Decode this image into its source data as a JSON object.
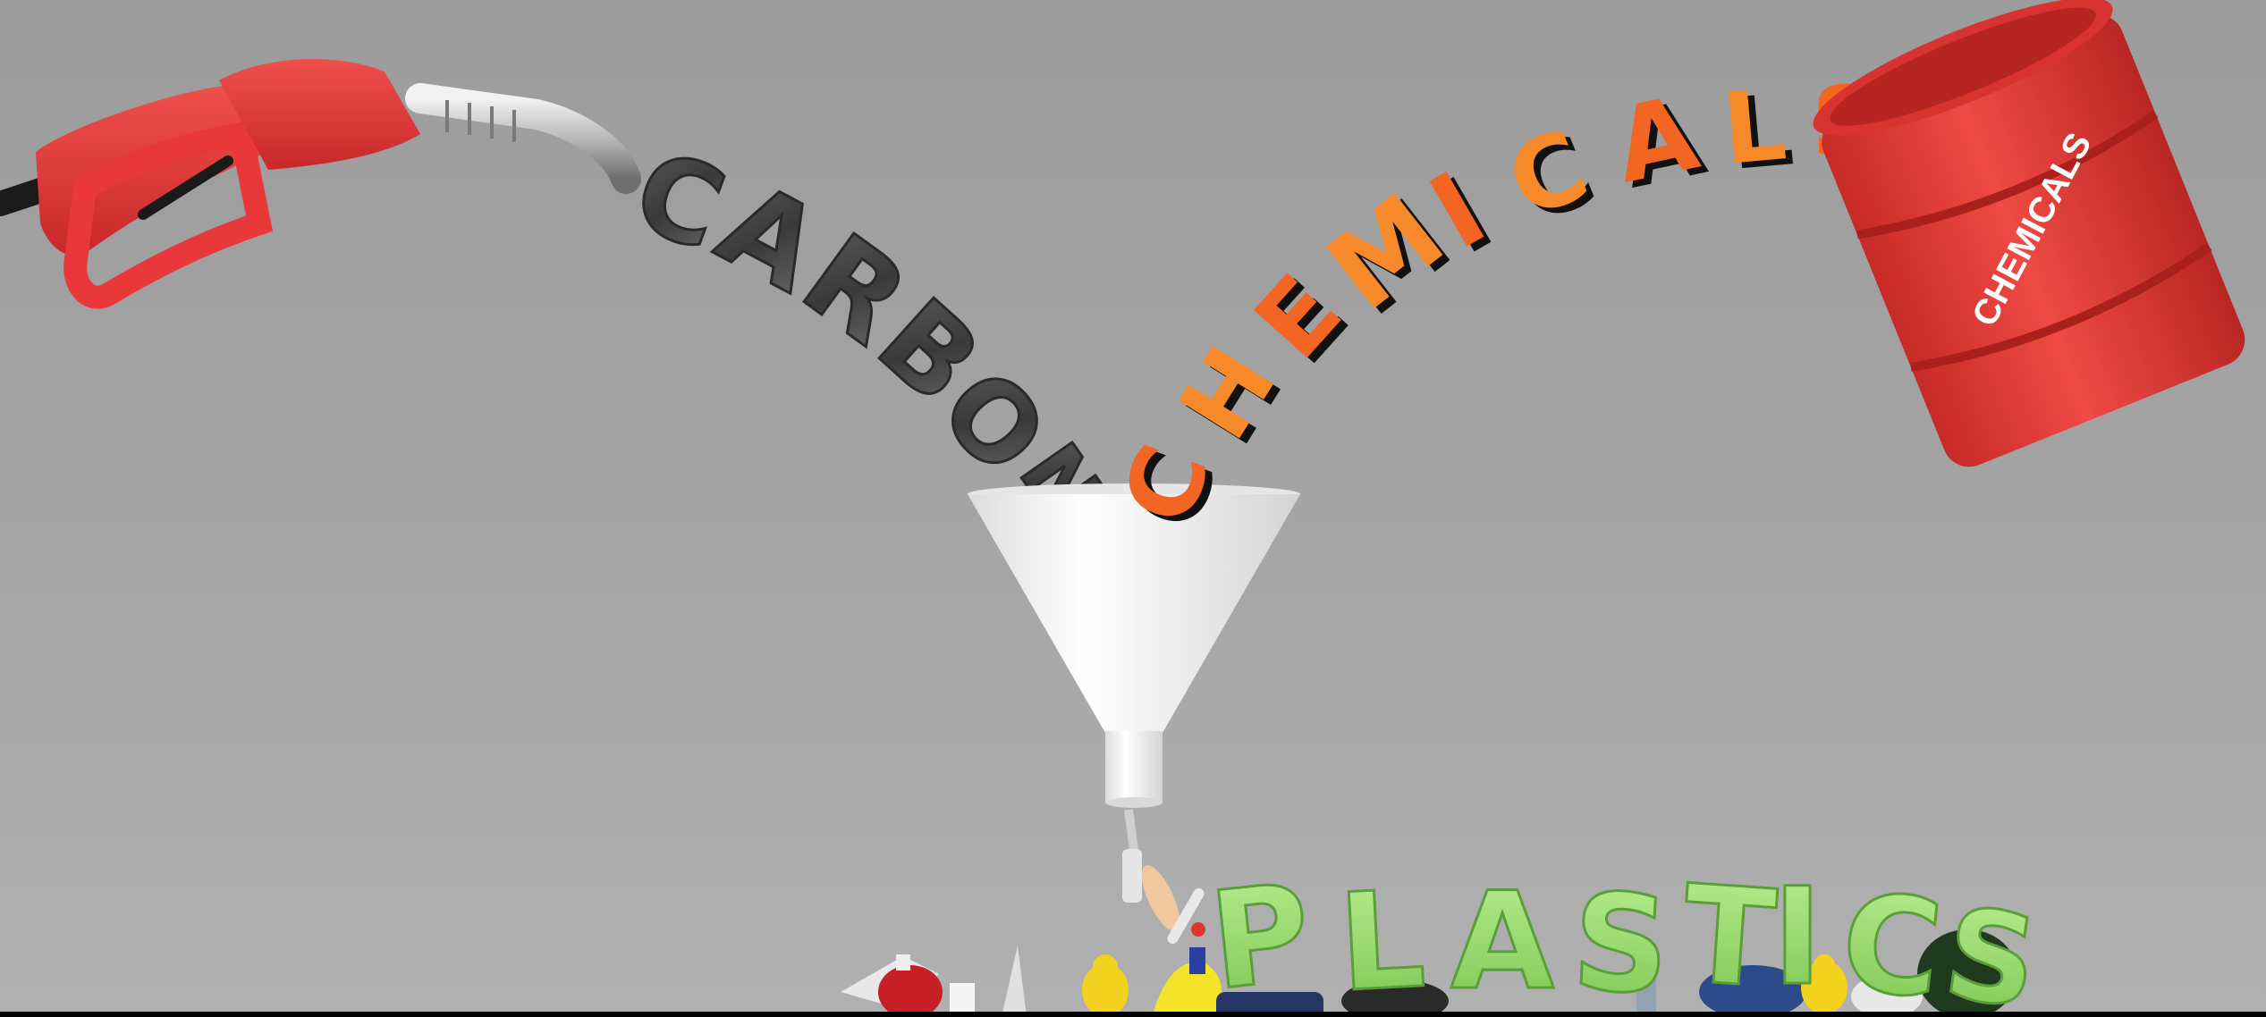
{
  "word_carbon": [
    "C",
    "A",
    "R",
    "B",
    "O",
    "N"
  ],
  "word_chemicals": [
    "C",
    "H",
    "E",
    "M",
    "I",
    "C",
    "A",
    "L",
    "S"
  ],
  "word_plastics": [
    "P",
    "L",
    "A",
    "S",
    "T",
    "I",
    "C",
    "S"
  ],
  "barrel_label": "CHEMICALS",
  "colors": {
    "background": "#a3a3a3",
    "nozzle_red": "#e8383a",
    "barrel_red": "#e23a36",
    "carbon_gray": "#4a4a4a",
    "chemicals_orange": "#f26522",
    "chemicals_light_orange": "#f68a2a",
    "plastics_green": "#8fd36a",
    "funnel_white": "#f4f4f4"
  }
}
